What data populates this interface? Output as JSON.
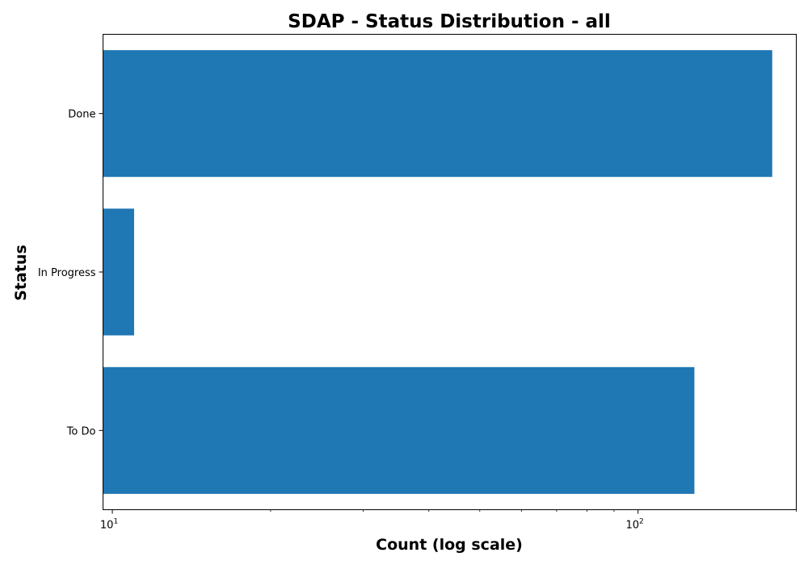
{
  "chart_data": {
    "type": "bar",
    "orientation": "horizontal",
    "title": "SDAP - Status Distribution - all",
    "xlabel": "Count (log scale)",
    "ylabel": "Status",
    "xscale": "log",
    "xlim": [
      9.6,
      200
    ],
    "categories": [
      "Done",
      "In Progress",
      "To Do"
    ],
    "values": [
      180,
      11,
      128
    ],
    "bar_color": "#1f77b4",
    "x_major_ticks": [
      {
        "value": 10,
        "base": "10",
        "exp": "1"
      },
      {
        "value": 100,
        "base": "10",
        "exp": "2"
      }
    ],
    "x_minor_ticks": [
      20,
      30,
      40,
      50,
      60,
      70,
      80,
      90,
      200
    ],
    "grid": false,
    "legend": false
  }
}
